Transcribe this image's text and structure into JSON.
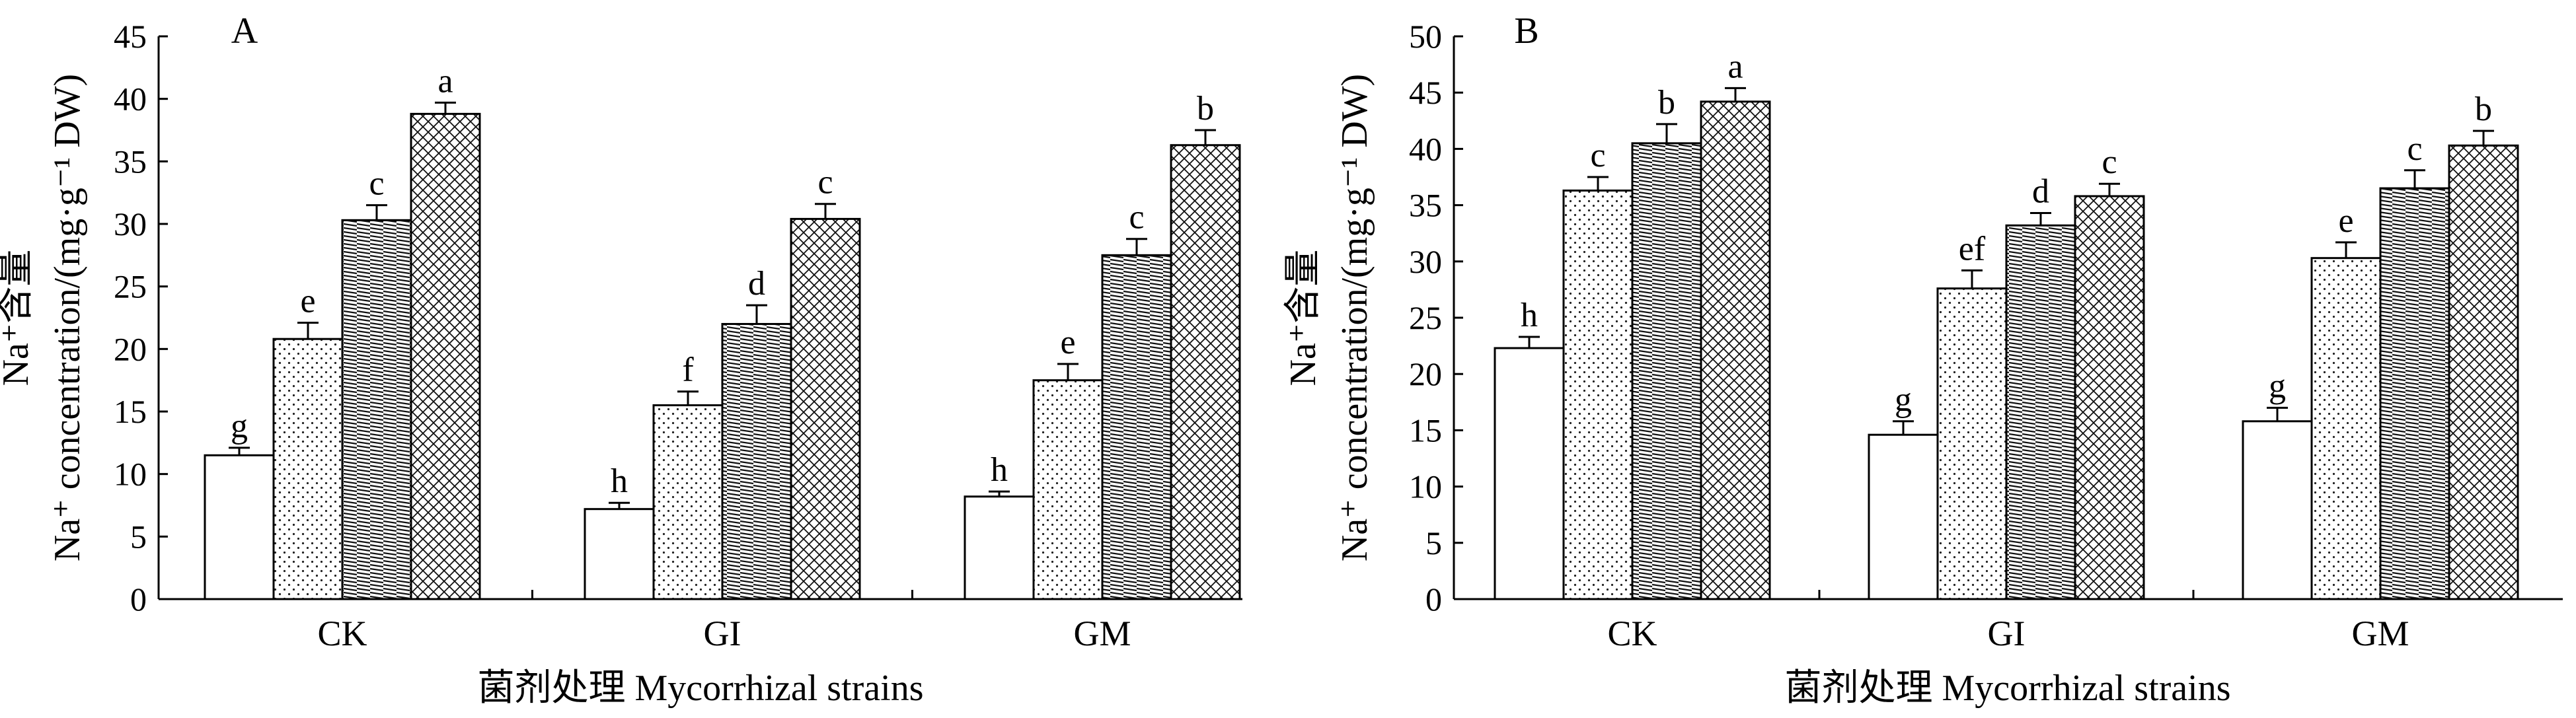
{
  "figure": {
    "title": ""
  },
  "chart_data": [
    {
      "type": "bar",
      "panel_label": "A",
      "categories": [
        "CK",
        "GI",
        "GM"
      ],
      "series": [
        {
          "pattern": "blank",
          "values": [
            11.5,
            7.2,
            8.2
          ],
          "errors": [
            0.6,
            0.5,
            0.4
          ]
        },
        {
          "pattern": "dots",
          "values": [
            20.8,
            15.5,
            17.5
          ],
          "errors": [
            1.3,
            1.1,
            1.3
          ]
        },
        {
          "pattern": "hlines",
          "values": [
            30.3,
            22.0,
            27.5
          ],
          "errors": [
            1.2,
            1.5,
            1.3
          ]
        },
        {
          "pattern": "crosshatch",
          "values": [
            38.8,
            30.4,
            36.3
          ],
          "errors": [
            0.9,
            1.2,
            1.2
          ]
        }
      ],
      "sig_labels": [
        [
          "g",
          "h",
          "h"
        ],
        [
          "e",
          "f",
          "e"
        ],
        [
          "c",
          "d",
          "c"
        ],
        [
          "a",
          "c",
          "b"
        ]
      ],
      "ylim": [
        0,
        45
      ],
      "yticks": [
        0,
        5,
        10,
        15,
        20,
        25,
        30,
        35,
        40,
        45
      ],
      "ylabel_line1": "Na⁺含量",
      "ylabel_line2": "Na⁺ concentration/(mg·g⁻¹ DW)",
      "xlabel": "菌剂处理 Mycorrhizal strains",
      "legend": "none",
      "grid": false
    },
    {
      "type": "bar",
      "panel_label": "B",
      "categories": [
        "CK",
        "GI",
        "GM"
      ],
      "series": [
        {
          "pattern": "blank",
          "values": [
            22.3,
            14.6,
            15.8
          ],
          "errors": [
            1.0,
            1.2,
            1.2
          ]
        },
        {
          "pattern": "dots",
          "values": [
            36.3,
            27.6,
            30.3
          ],
          "errors": [
            1.2,
            1.6,
            1.4
          ]
        },
        {
          "pattern": "hlines",
          "values": [
            40.5,
            33.2,
            36.5
          ],
          "errors": [
            1.7,
            1.1,
            1.6
          ]
        },
        {
          "pattern": "crosshatch",
          "values": [
            44.2,
            35.8,
            40.3
          ],
          "errors": [
            1.2,
            1.1,
            1.3
          ]
        }
      ],
      "sig_labels": [
        [
          "h",
          "g",
          "g"
        ],
        [
          "c",
          "ef",
          "e"
        ],
        [
          "b",
          "d",
          "c"
        ],
        [
          "a",
          "c",
          "b"
        ]
      ],
      "ylim": [
        0,
        50
      ],
      "yticks": [
        0,
        5,
        10,
        15,
        20,
        25,
        30,
        35,
        40,
        45,
        50
      ],
      "ylabel_line1": "Na⁺含量",
      "ylabel_line2": "Na⁺ concentration/(mg·g⁻¹ DW)",
      "xlabel": "菌剂处理 Mycorrhizal strains",
      "legend": "none",
      "grid": false
    }
  ]
}
